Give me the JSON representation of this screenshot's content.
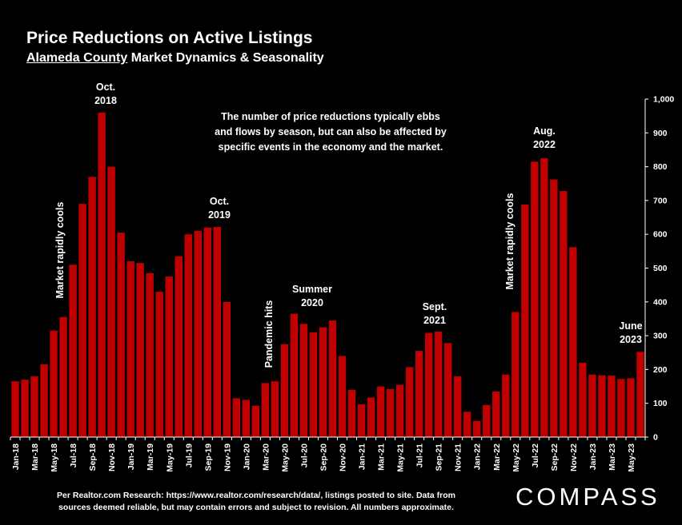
{
  "title": "Price Reductions on Active Listings",
  "subtitle_underlined": "Alameda County",
  "subtitle_rest": " Market Dynamics & Seasonality",
  "footer_line1": "Per Realtor.com Research:  https://www.realtor.com/research/data/, listings posted to site. Data from",
  "footer_line2": "sources deemed reliable, but may contain errors and subject to revision. All numbers approximate.",
  "brand": "COMPASS",
  "colors": {
    "bar": "#c00000",
    "background": "#000000",
    "text": "#ffffff"
  },
  "chart_data": {
    "type": "bar",
    "ylim": [
      0,
      1000
    ],
    "yticks": [
      "0",
      "100",
      "200",
      "300",
      "400",
      "500",
      "600",
      "700",
      "800",
      "900",
      "1,000"
    ],
    "xlabels": [
      "Jan-18",
      "Mar-18",
      "May-18",
      "Jul-18",
      "Sep-18",
      "Nov-18",
      "Jan-19",
      "Mar-19",
      "May-19",
      "Jul-19",
      "Sep-19",
      "Nov-19",
      "Jan-20",
      "Mar-20",
      "May-20",
      "Jul-20",
      "Sep-20",
      "Nov-20",
      "Jan-21",
      "Mar-21",
      "May-21",
      "Jul-21",
      "Sep-21",
      "Nov-21",
      "Jan-22",
      "Mar-22",
      "May-22",
      "Jul-22",
      "Sep-22",
      "Nov-22",
      "Jan-23",
      "Mar-23",
      "May-23"
    ],
    "values": [
      165,
      170,
      180,
      215,
      315,
      355,
      510,
      690,
      770,
      960,
      800,
      605,
      520,
      515,
      485,
      430,
      475,
      535,
      600,
      610,
      620,
      622,
      400,
      115,
      110,
      93,
      160,
      165,
      275,
      365,
      335,
      310,
      325,
      345,
      240,
      140,
      97,
      117,
      150,
      142,
      155,
      207,
      255,
      308,
      312,
      278,
      180,
      75,
      48,
      95,
      135,
      185,
      370,
      688,
      815,
      825,
      762,
      728,
      562,
      220,
      185,
      183,
      182,
      172,
      174,
      252
    ],
    "annotations": [
      {
        "text": [
          "Oct.",
          "2018"
        ]
      },
      {
        "text": [
          "Oct.",
          "2019"
        ]
      },
      {
        "text": [
          "Summer",
          "2020"
        ]
      },
      {
        "text": [
          "Sept.",
          "2021"
        ]
      },
      {
        "text": [
          "Aug.",
          "2022"
        ]
      },
      {
        "text": [
          "June",
          "2023"
        ]
      },
      {
        "text": [
          "Market rapidly cools"
        ]
      },
      {
        "text": [
          "Pandemic hits"
        ]
      },
      {
        "text": [
          "Market rapidly cools"
        ]
      },
      {
        "text": [
          "The number of price reductions typically ebbs",
          "and flows by season, but can also be affected by",
          "specific events in the economy and the market."
        ]
      }
    ]
  }
}
